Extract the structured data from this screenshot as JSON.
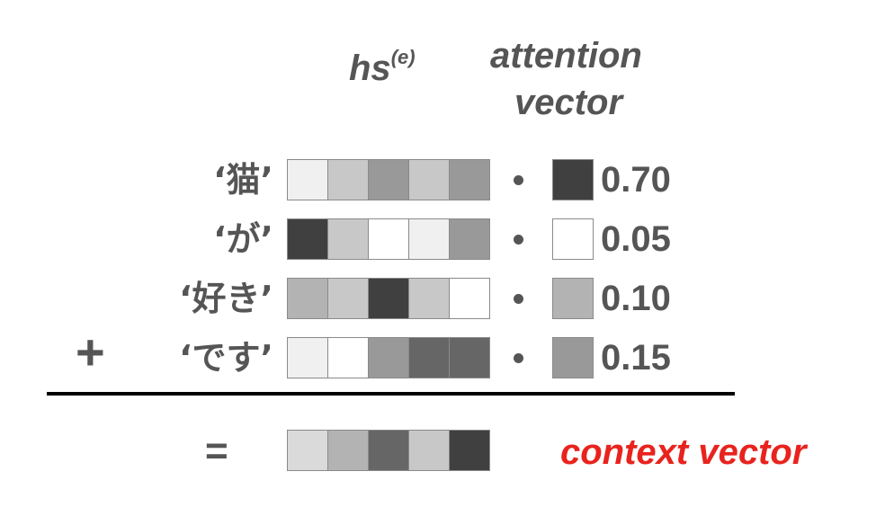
{
  "headers": {
    "hs_base": "hs",
    "hs_sup": "(e)",
    "attention_line1": "attention",
    "attention_line2": "vector"
  },
  "rows": [
    {
      "word": "‘猫’",
      "hs_colors": [
        "#f0f0f0",
        "#c8c8c8",
        "#999999",
        "#c8c8c8",
        "#999999"
      ],
      "attention_color": "#404040",
      "attention_value": "0.70"
    },
    {
      "word": "‘が’",
      "hs_colors": [
        "#404040",
        "#c8c8c8",
        "#ffffff",
        "#f0f0f0",
        "#999999"
      ],
      "attention_color": "#ffffff",
      "attention_value": "0.05"
    },
    {
      "word": "‘好き’",
      "hs_colors": [
        "#b3b3b3",
        "#c8c8c8",
        "#404040",
        "#c8c8c8",
        "#ffffff"
      ],
      "attention_color": "#b3b3b3",
      "attention_value": "0.10"
    },
    {
      "word": "‘です’",
      "hs_colors": [
        "#f0f0f0",
        "#ffffff",
        "#999999",
        "#666666",
        "#666666"
      ],
      "attention_color": "#999999",
      "attention_value": "0.15"
    }
  ],
  "operators": {
    "dot": "•",
    "plus": "+",
    "equals": "="
  },
  "result": {
    "label": "context vector",
    "label_color": "#e8231d",
    "colors": [
      "#dadada",
      "#b3b3b3",
      "#666666",
      "#c8c8c8",
      "#404040"
    ]
  }
}
